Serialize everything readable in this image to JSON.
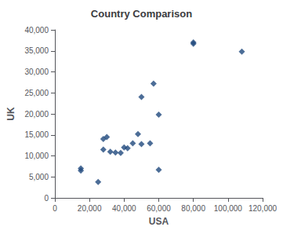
{
  "chart_data": {
    "type": "scatter",
    "title": "Country Comparison",
    "xlabel": "USA",
    "ylabel": "UK",
    "x": [
      15000,
      15000,
      25000,
      28000,
      32000,
      28000,
      30000,
      35000,
      38000,
      40000,
      42000,
      45000,
      48000,
      50000,
      50000,
      55000,
      57000,
      60000,
      60000,
      80000,
      80000,
      108000
    ],
    "values": [
      7000,
      6500,
      3800,
      11500,
      11000,
      14000,
      14500,
      10800,
      10700,
      12000,
      11800,
      13000,
      15200,
      24000,
      12800,
      13000,
      27200,
      6700,
      19800,
      37000,
      36700,
      34800
    ],
    "color": "#1F497D",
    "marker": "diamond",
    "xlim": [
      0,
      120000
    ],
    "xticks": [
      0,
      {
        "value": 20000,
        "label": "20,000"
      },
      {
        "value": 40000,
        "label": "40,000"
      },
      {
        "value": 60000,
        "label": "60,000"
      },
      {
        "value": 80000,
        "label": "80,000"
      },
      {
        "value": 100000,
        "label": "100,000"
      },
      {
        "value": 120000,
        "label": "120,000"
      }
    ],
    "ylim": [
      0,
      40000
    ],
    "yticks": [
      0,
      {
        "value": 5000,
        "label": "5,000"
      },
      {
        "value": 10000,
        "label": "10,000"
      },
      {
        "value": 15000,
        "label": "15,000"
      },
      {
        "value": 20000,
        "label": "20,000"
      },
      {
        "value": 25000,
        "label": "25,000"
      },
      {
        "value": 30000,
        "label": "30,000"
      },
      {
        "value": 35000,
        "label": "35,000"
      },
      {
        "value": 40000,
        "label": "40,000"
      }
    ],
    "grid": false
  }
}
